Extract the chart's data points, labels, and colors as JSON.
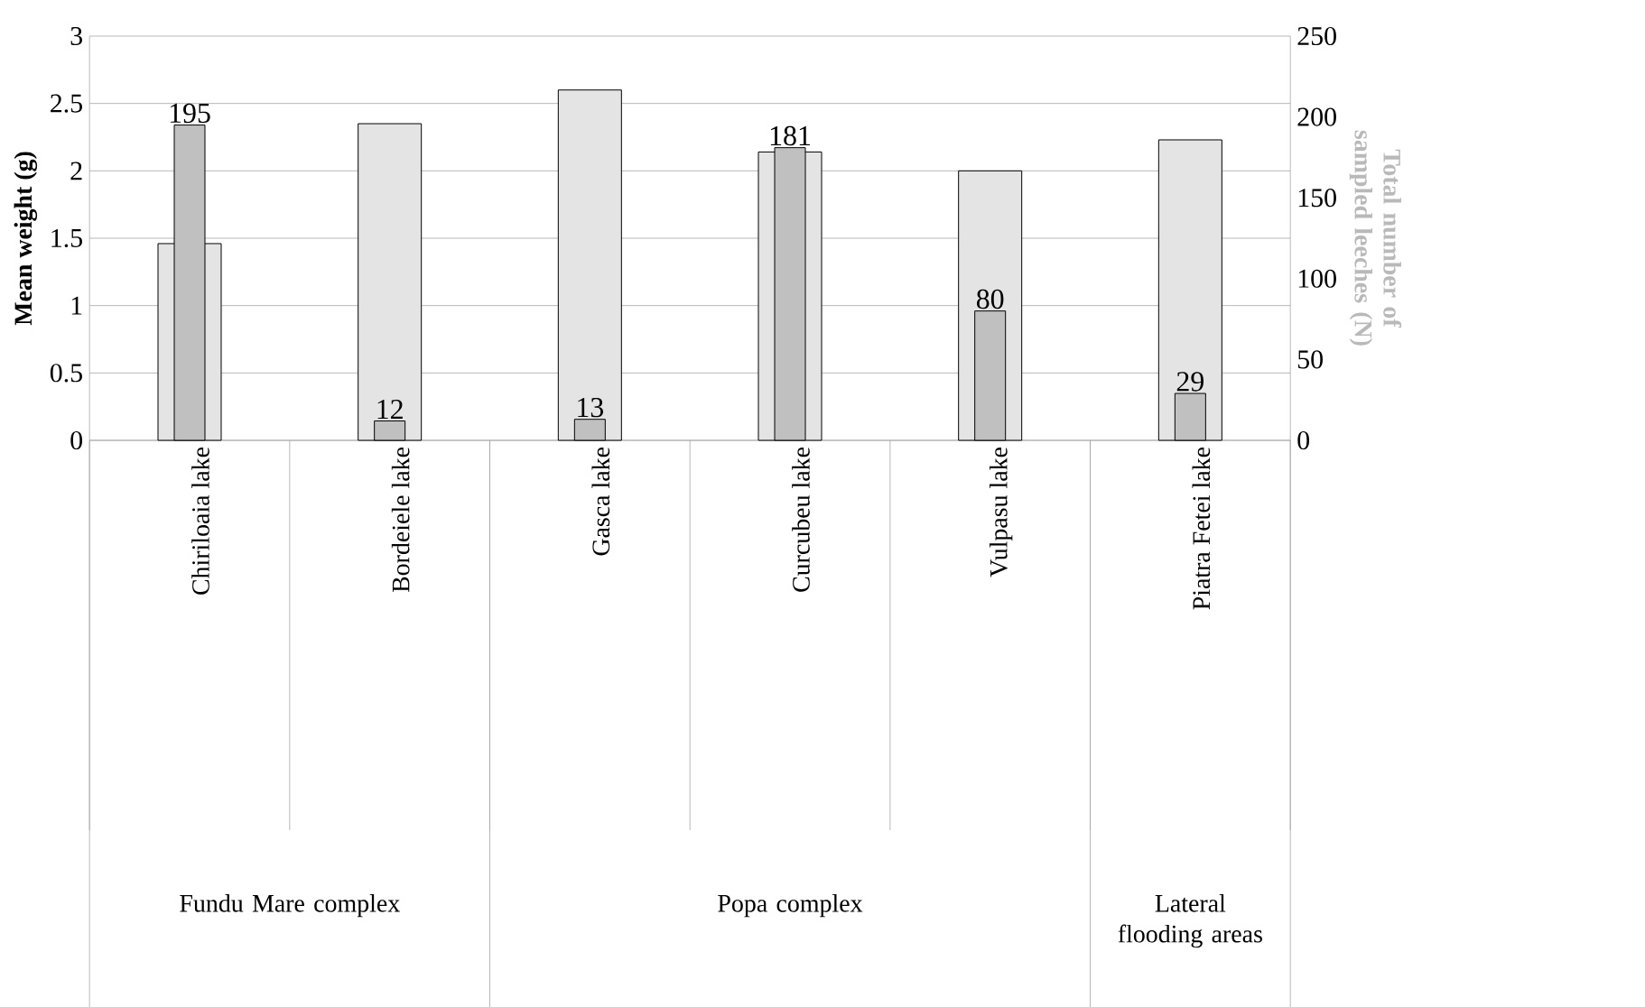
{
  "chart_data": {
    "type": "bar",
    "categories": [
      "Chiriloaia lake",
      "Bordeiele lake",
      "Gasca lake",
      "Curcubeu lake",
      "Vulpasu lake",
      "Piatra Fetei lake"
    ],
    "series": [
      {
        "color": "#e4e4e4",
        "values": [
          1.46,
          2.35,
          2.6,
          2.14,
          2.0,
          2.23
        ]
      },
      {
        "color": "#c0c0c0",
        "axis": "y2",
        "values": [
          195,
          12,
          13,
          181,
          80,
          29
        ],
        "value_labels": [
          "195",
          "12",
          "13",
          "181",
          "80",
          "29"
        ]
      }
    ],
    "ylabel": "Mean weight (g)",
    "y2label": "Total number of sampled leeches (N)",
    "ylim": [
      0,
      3
    ],
    "yticks": [
      0,
      0.5,
      1,
      1.5,
      2,
      2.5,
      3
    ],
    "y2lim": [
      0,
      250
    ],
    "y2ticks": [
      0,
      50,
      100,
      150,
      200,
      250
    ],
    "grid": "y",
    "annotations": [
      "Fundu Mare complex",
      "Popa complex",
      "Lateral flooding areas"
    ]
  }
}
